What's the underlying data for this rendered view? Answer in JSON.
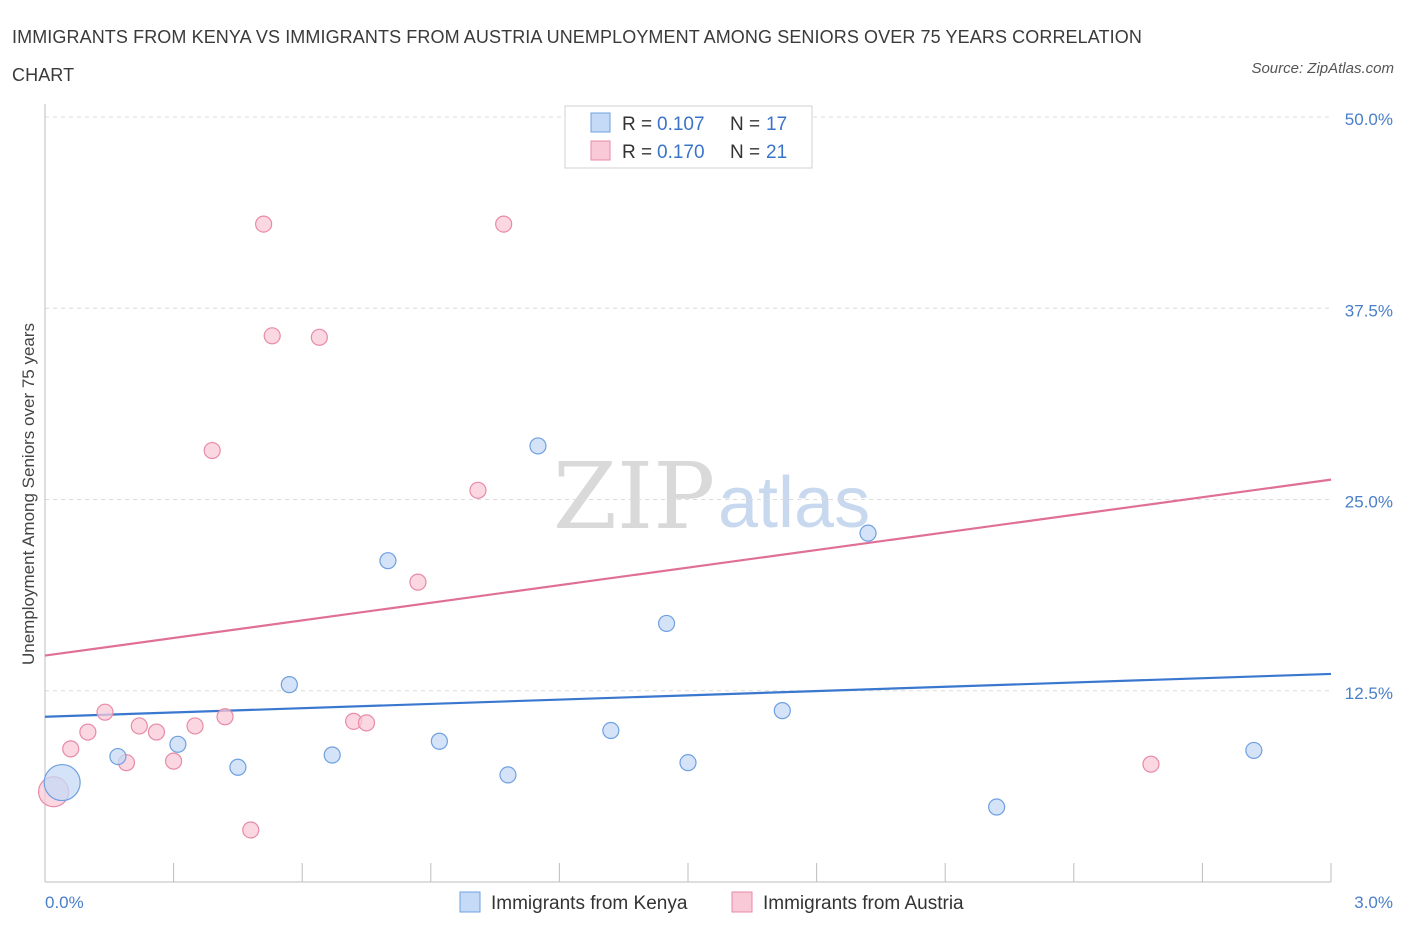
{
  "title": "IMMIGRANTS FROM KENYA VS IMMIGRANTS FROM AUSTRIA UNEMPLOYMENT AMONG SENIORS OVER 75 YEARS CORRELATION CHART",
  "source": "Source: ZipAtlas.com",
  "watermark": {
    "zip": "ZIP",
    "atlas": "atlas"
  },
  "legend": {
    "kenya": {
      "r_label": "R = ",
      "r_value": "0.107",
      "n_label": "N = ",
      "n_value": "17"
    },
    "austria": {
      "r_label": "R = ",
      "r_value": "0.170",
      "n_label": "N = ",
      "n_value": "21"
    }
  },
  "chart_data": {
    "type": "scatter",
    "title": "IMMIGRANTS FROM KENYA VS IMMIGRANTS FROM AUSTRIA UNEMPLOYMENT AMONG SENIORS OVER 75 YEARS CORRELATION CHART",
    "xlabel": "",
    "ylabel": "Unemployment Among Seniors over 75 years",
    "xlim": [
      0,
      3.0
    ],
    "ylim": [
      0,
      50
    ],
    "x_tick_labels": [
      "0.0%",
      "3.0%"
    ],
    "y_ticks": [
      12.5,
      25.0,
      37.5,
      50.0
    ],
    "y_tick_labels": [
      "12.5%",
      "25.0%",
      "37.5%",
      "50.0%"
    ],
    "grid": true,
    "legend_position": "top-center",
    "series": [
      {
        "name": "Immigrants from Kenya",
        "color": "#6fa0e0",
        "fill": "#c5daf6",
        "points": [
          {
            "x": 0.04,
            "y": 6.5,
            "size": 3
          },
          {
            "x": 0.17,
            "y": 8.2,
            "size": 1
          },
          {
            "x": 0.31,
            "y": 9.0,
            "size": 1
          },
          {
            "x": 0.45,
            "y": 7.5,
            "size": 1
          },
          {
            "x": 0.57,
            "y": 12.9,
            "size": 1
          },
          {
            "x": 0.67,
            "y": 8.3,
            "size": 1
          },
          {
            "x": 0.8,
            "y": 21.0,
            "size": 1
          },
          {
            "x": 0.92,
            "y": 9.2,
            "size": 1
          },
          {
            "x": 1.08,
            "y": 7.0,
            "size": 1
          },
          {
            "x": 1.15,
            "y": 28.5,
            "size": 1
          },
          {
            "x": 1.32,
            "y": 9.9,
            "size": 1
          },
          {
            "x": 1.45,
            "y": 16.9,
            "size": 1
          },
          {
            "x": 1.5,
            "y": 7.8,
            "size": 1
          },
          {
            "x": 1.72,
            "y": 11.2,
            "size": 1
          },
          {
            "x": 1.92,
            "y": 22.8,
            "size": 1
          },
          {
            "x": 2.22,
            "y": 4.9,
            "size": 1
          },
          {
            "x": 2.82,
            "y": 8.6,
            "size": 1
          }
        ],
        "trend": {
          "x0": 0.0,
          "y0": 10.8,
          "x1": 3.0,
          "y1": 13.6
        }
      },
      {
        "name": "Immigrants from Austria",
        "color": "#e88aa8",
        "fill": "#f9c9d8",
        "points": [
          {
            "x": 0.02,
            "y": 5.9,
            "size": 2
          },
          {
            "x": 0.06,
            "y": 8.7,
            "size": 1
          },
          {
            "x": 0.1,
            "y": 9.8,
            "size": 1
          },
          {
            "x": 0.14,
            "y": 11.1,
            "size": 1
          },
          {
            "x": 0.19,
            "y": 7.8,
            "size": 1
          },
          {
            "x": 0.22,
            "y": 10.2,
            "size": 1
          },
          {
            "x": 0.26,
            "y": 9.8,
            "size": 1
          },
          {
            "x": 0.3,
            "y": 7.9,
            "size": 1
          },
          {
            "x": 0.35,
            "y": 10.2,
            "size": 1
          },
          {
            "x": 0.39,
            "y": 28.2,
            "size": 1
          },
          {
            "x": 0.42,
            "y": 10.8,
            "size": 1
          },
          {
            "x": 0.48,
            "y": 3.4,
            "size": 1
          },
          {
            "x": 0.51,
            "y": 43.0,
            "size": 1
          },
          {
            "x": 0.53,
            "y": 35.7,
            "size": 1
          },
          {
            "x": 0.64,
            "y": 35.6,
            "size": 1
          },
          {
            "x": 0.72,
            "y": 10.5,
            "size": 1
          },
          {
            "x": 0.75,
            "y": 10.4,
            "size": 1
          },
          {
            "x": 0.87,
            "y": 19.6,
            "size": 1
          },
          {
            "x": 1.01,
            "y": 25.6,
            "size": 1
          },
          {
            "x": 1.07,
            "y": 43.0,
            "size": 1
          },
          {
            "x": 2.58,
            "y": 7.7,
            "size": 1
          }
        ],
        "trend": {
          "x0": 0.0,
          "y0": 14.8,
          "x1": 3.0,
          "y1": 26.3
        }
      }
    ]
  }
}
